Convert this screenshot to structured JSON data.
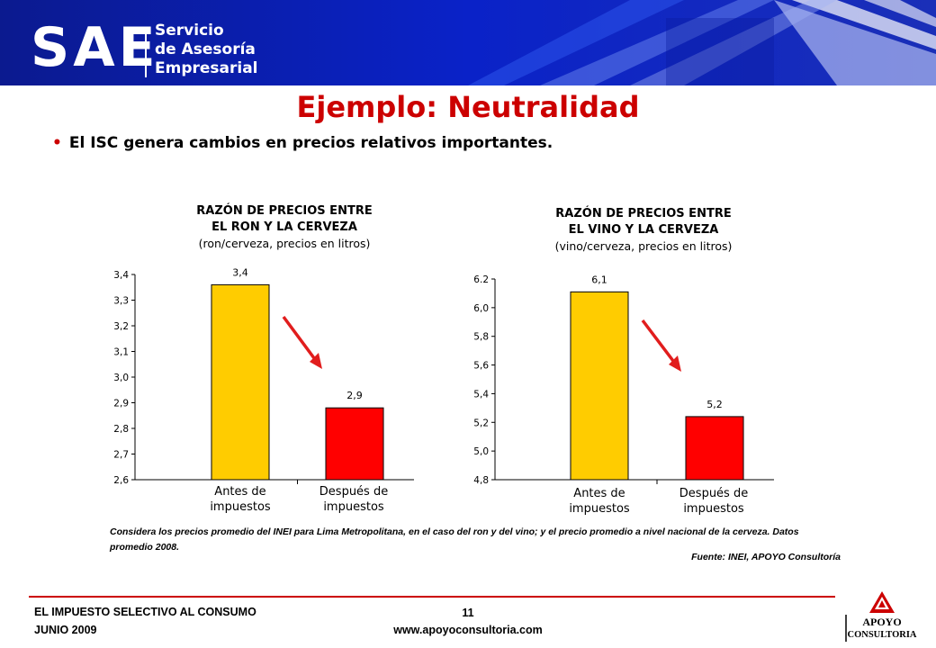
{
  "header": {
    "logo_text": "SAE",
    "subtitle_lines": [
      "Servicio",
      "de Asesoría",
      "Empresarial"
    ]
  },
  "slide": {
    "title": "Ejemplo: Neutralidad",
    "bullet": "El ISC genera cambios en precios relativos importantes."
  },
  "chart_data": [
    {
      "type": "bar",
      "title_lines": [
        "RAZÓN DE PRECIOS ENTRE",
        "EL RON Y LA CERVEZA",
        "(ron/cerveza, precios en litros)"
      ],
      "categories": [
        [
          "Antes de",
          "impuestos"
        ],
        [
          "Después de",
          "impuestos"
        ]
      ],
      "values": [
        3.36,
        2.88
      ],
      "data_labels": [
        "3,4",
        "2,9"
      ],
      "colors": [
        "#ffcc00",
        "#ff0000"
      ],
      "ylim": [
        2.6,
        3.4
      ],
      "yticks": [
        "2,6",
        "2,7",
        "2,8",
        "2,9",
        "3,0",
        "3,1",
        "3,2",
        "3,3",
        "3,4"
      ],
      "ytick_values": [
        2.6,
        2.7,
        2.8,
        2.9,
        3.0,
        3.1,
        3.2,
        3.3,
        3.4
      ],
      "grid": false,
      "annotation": "red downward arrow"
    },
    {
      "type": "bar",
      "title_lines": [
        "RAZÓN DE PRECIOS ENTRE",
        "EL VINO Y LA CERVEZA",
        "(vino/cerveza, precios en litros)"
      ],
      "categories": [
        [
          "Antes de",
          "impuestos"
        ],
        [
          "Después de",
          "impuestos"
        ]
      ],
      "values": [
        6.11,
        5.24
      ],
      "data_labels": [
        "6,1",
        "5,2"
      ],
      "colors": [
        "#ffcc00",
        "#ff0000"
      ],
      "ylim": [
        4.8,
        6.2
      ],
      "yticks": [
        "4,8",
        "5,0",
        "5,2",
        "5,4",
        "5,6",
        "5,8",
        "6,0",
        "6.2"
      ],
      "ytick_values": [
        4.8,
        5.0,
        5.2,
        5.4,
        5.6,
        5.8,
        6.0,
        6.2
      ],
      "grid": false,
      "annotation": "red downward arrow"
    }
  ],
  "note": "Considera los precios promedio del INEI para Lima Metropolitana, en el caso del ron y del vino; y el precio promedio a nivel nacional de la cerveza. Datos promedio 2008.",
  "source": "Fuente: INEI, APOYO Consultoría",
  "footer": {
    "line1": "EL IMPUESTO SELECTIVO AL CONSUMO",
    "line2": "JUNIO 2009",
    "page_number": "11",
    "website": "www.apoyoconsultoria.com",
    "logo_line1": "APOYO",
    "logo_line2": "CONSULTORIA"
  },
  "colors": {
    "title": "#cc0000",
    "banner": "#0a1a9e",
    "accent": "#cc0000"
  }
}
